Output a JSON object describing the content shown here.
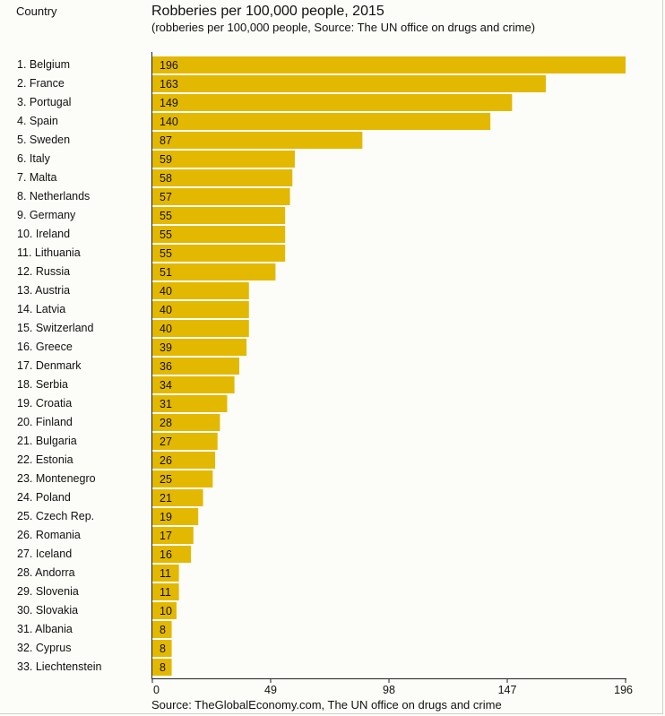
{
  "header": {
    "country_label": "Country"
  },
  "chart_data": {
    "type": "bar",
    "orientation": "horizontal",
    "title": "Robberies per 100,000 people, 2015",
    "subtitle": "(robberies per 100,000 people, Source: The UN office on drugs and crime)",
    "source": "Source: TheGlobalEconomy.com, The UN office on drugs and crime",
    "categories": [
      "1. Belgium",
      "2. France",
      "3. Portugal",
      "4. Spain",
      "5. Sweden",
      "6. Italy",
      "7. Malta",
      "8. Netherlands",
      "9. Germany",
      "10. Ireland",
      "11. Lithuania",
      "12. Russia",
      "13. Austria",
      "14. Latvia",
      "15. Switzerland",
      "16. Greece",
      "17. Denmark",
      "18. Serbia",
      "19. Croatia",
      "20. Finland",
      "21. Bulgaria",
      "22. Estonia",
      "23. Montenegro",
      "24. Poland",
      "25. Czech Rep.",
      "26. Romania",
      "27. Iceland",
      "28. Andorra",
      "29. Slovenia",
      "30. Slovakia",
      "31. Albania",
      "32. Cyprus",
      "33. Liechtenstein"
    ],
    "values": [
      196,
      163,
      149,
      140,
      87,
      59,
      58,
      57,
      55,
      55,
      55,
      51,
      40,
      40,
      40,
      39,
      36,
      34,
      31,
      28,
      27,
      26,
      25,
      21,
      19,
      17,
      16,
      11,
      11,
      10,
      8,
      8,
      8
    ],
    "xlim": [
      0,
      196
    ],
    "xticks": [
      0,
      49,
      98,
      147,
      196
    ],
    "bar_color": "#e3b800",
    "grid": false
  }
}
